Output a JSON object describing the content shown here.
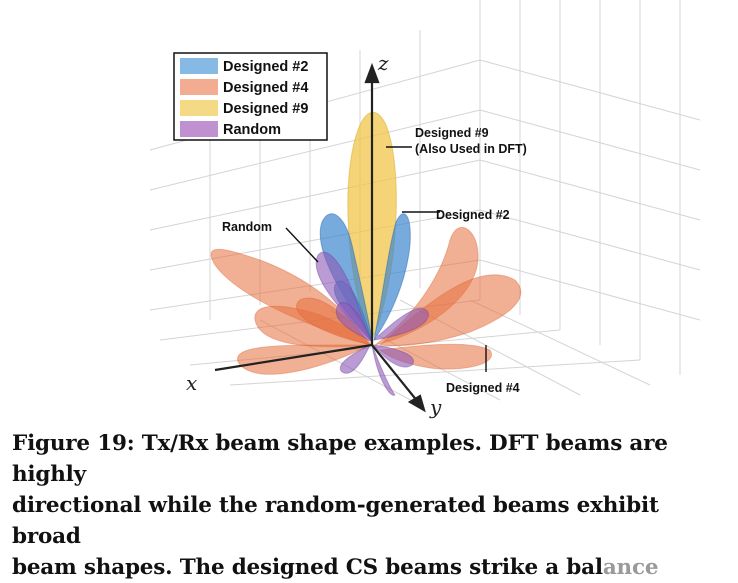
{
  "figure": {
    "legend": [
      {
        "label": "Designed #2",
        "color": "#5ea3dc"
      },
      {
        "label": "Designed #4",
        "color": "#ef9e7e"
      },
      {
        "label": "Designed #9",
        "color": "#f2cd5c"
      },
      {
        "label": "Random",
        "color": "#b57ec8"
      }
    ],
    "axes": {
      "x": "x",
      "y": "y",
      "z": "z"
    },
    "annotations": {
      "designed9_line1": "Designed #9",
      "designed9_line2": "(Also Used in DFT)",
      "designed2": "Designed #2",
      "random": "Random",
      "designed4": "Designed #4"
    }
  },
  "caption": {
    "line1": "Figure 19: Tx/Rx beam shape examples. DFT beams are highly",
    "line2": "directional while the random-generated beams exhibit broad",
    "line3_a": "beam shapes. The designed CS beams strike a bal",
    "line3_b": "ance"
  }
}
